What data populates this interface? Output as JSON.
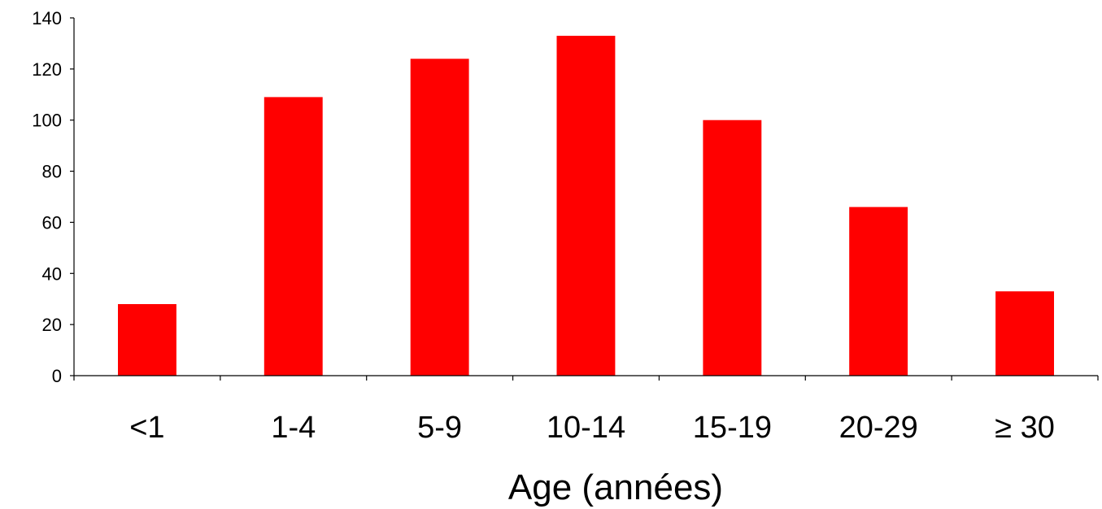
{
  "chart_data": {
    "type": "bar",
    "categories": [
      "<1",
      "1-4",
      "5-9",
      "10-14",
      "15-19",
      "20-29",
      "≥ 30"
    ],
    "values": [
      28,
      109,
      124,
      133,
      100,
      66,
      33
    ],
    "title": "",
    "xlabel": "Age (années)",
    "ylabel": "",
    "ylim": [
      0,
      140
    ],
    "yticks": [
      0,
      20,
      40,
      60,
      80,
      100,
      120,
      140
    ],
    "grid": false,
    "legend": "none",
    "bar_color": "#ff0000"
  }
}
